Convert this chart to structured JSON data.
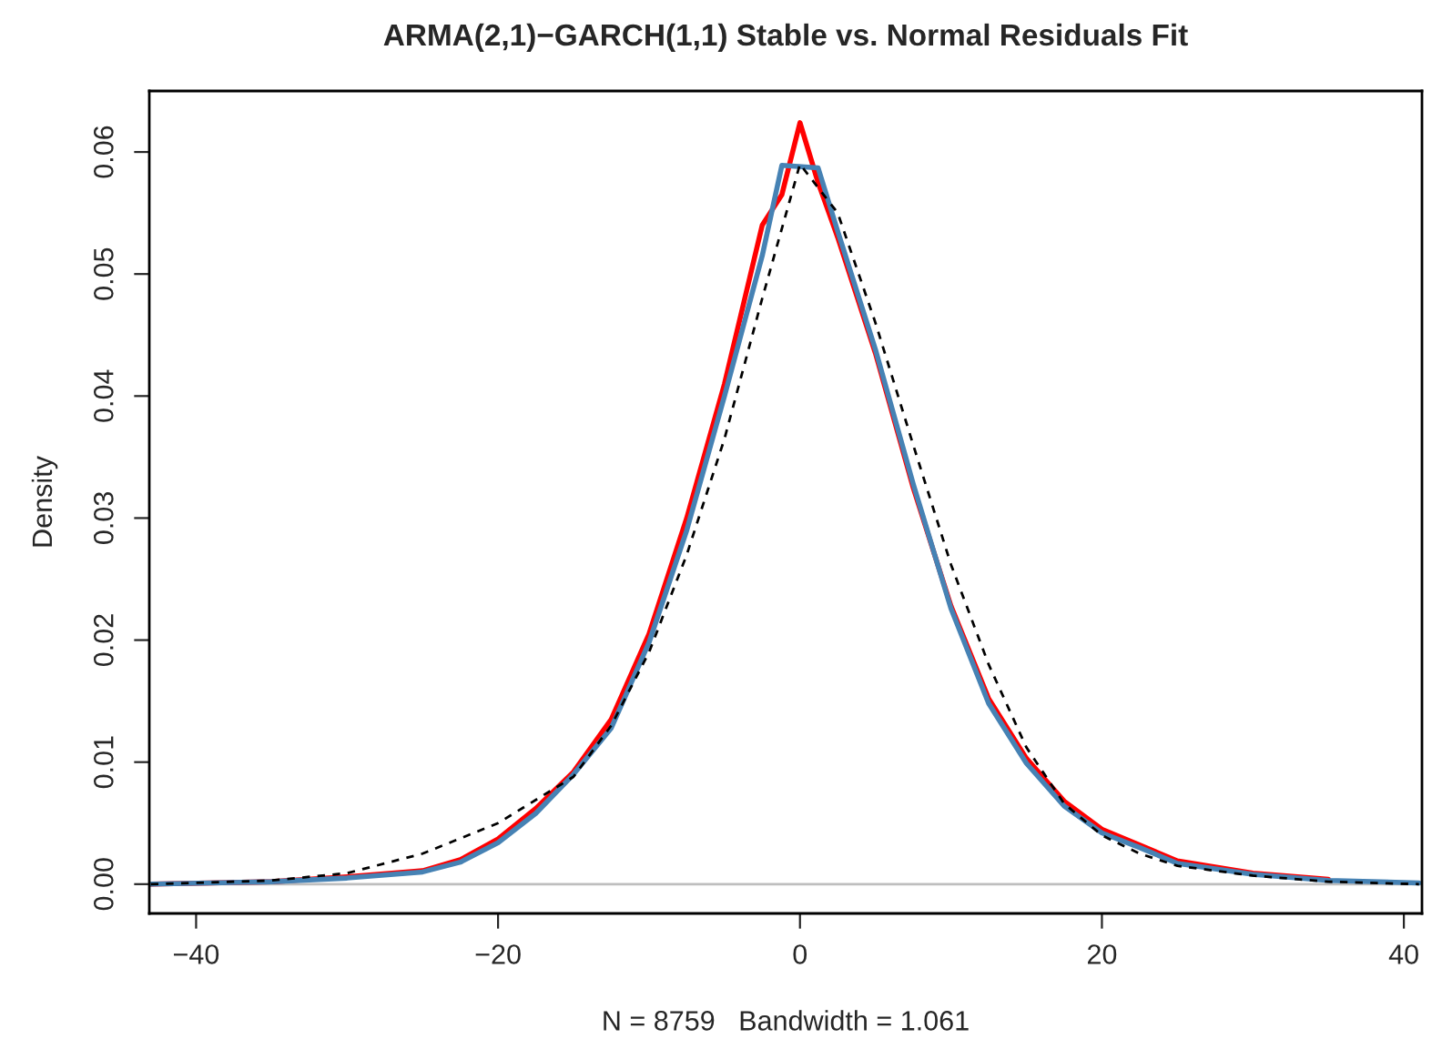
{
  "chart_data": {
    "type": "line",
    "title": "ARMA(2,1)−GARCH(1,1) Stable vs. Normal Residuals Fit",
    "xlabel": "N = 8759   Bandwidth = 1.061",
    "ylabel": "Density",
    "xlim": [
      -43.1,
      41.2
    ],
    "ylim": [
      -0.0024,
      0.065
    ],
    "xticks": [
      {
        "value": -40,
        "label": "−40"
      },
      {
        "value": -20,
        "label": "−20"
      },
      0,
      20,
      40
    ],
    "yticks": [
      {
        "value": 0,
        "label": "0.00"
      },
      {
        "value": 0.01,
        "label": "0.01"
      },
      {
        "value": 0.02,
        "label": "0.02"
      },
      {
        "value": 0.03,
        "label": "0.03"
      },
      {
        "value": 0.04,
        "label": "0.04"
      },
      {
        "value": 0.05,
        "label": "0.05"
      },
      {
        "value": 0.06,
        "label": "0.06"
      }
    ],
    "grid": false,
    "legend": false,
    "ref_lines": [
      {
        "axis": "y",
        "value": 0,
        "color": "#bebebe"
      }
    ],
    "series": [
      {
        "color": "#ff0000",
        "line_style": "solid",
        "x": [
          -43,
          -35,
          -30,
          -25,
          -22.5,
          -20,
          -17.5,
          -15,
          -12.5,
          -10,
          -7.5,
          -5,
          -2.5,
          -1.2,
          0,
          1.2,
          2.5,
          5,
          7.5,
          10,
          12.5,
          15,
          17.5,
          20,
          22.5,
          25,
          30,
          35
        ],
        "values": [
          0.0,
          0.0002,
          0.0006,
          0.0011,
          0.002,
          0.0037,
          0.0062,
          0.0092,
          0.0135,
          0.0205,
          0.03,
          0.041,
          0.054,
          0.0565,
          0.0624,
          0.0575,
          0.053,
          0.0435,
          0.0325,
          0.0228,
          0.0152,
          0.0103,
          0.0068,
          0.0045,
          0.0032,
          0.0019,
          0.0009,
          0.0004
        ]
      },
      {
        "color": "#4682b4",
        "line_style": "solid",
        "x": [
          -43,
          -35,
          -30,
          -25,
          -22.5,
          -20,
          -17.5,
          -15,
          -12.5,
          -10,
          -7.5,
          -5,
          -2.5,
          -1.2,
          1.2,
          2.5,
          5,
          7.5,
          10,
          12.5,
          15,
          17.5,
          20,
          22.5,
          25,
          30,
          35,
          41
        ],
        "values": [
          0.0,
          0.0002,
          0.0005,
          0.001,
          0.0018,
          0.0034,
          0.0058,
          0.009,
          0.0128,
          0.0198,
          0.029,
          0.04,
          0.0515,
          0.0589,
          0.0587,
          0.0535,
          0.0438,
          0.0328,
          0.0226,
          0.0148,
          0.0099,
          0.0064,
          0.0042,
          0.003,
          0.0017,
          0.0008,
          0.0003,
          0.0001
        ]
      },
      {
        "color": "#000000",
        "line_style": "dashed",
        "x": [
          -43,
          -35,
          -30,
          -25,
          -20,
          -15,
          -12.5,
          -10,
          -7.5,
          -5,
          -2.5,
          0,
          2.5,
          5,
          7.5,
          10,
          12.5,
          15,
          17.5,
          20,
          22.5,
          25,
          30,
          35,
          41
        ],
        "values": [
          0.0,
          0.0003,
          0.0009,
          0.0025,
          0.005,
          0.0088,
          0.013,
          0.019,
          0.027,
          0.0365,
          0.048,
          0.059,
          0.055,
          0.046,
          0.036,
          0.0262,
          0.018,
          0.0112,
          0.0066,
          0.004,
          0.0025,
          0.0015,
          0.0007,
          0.0002,
          0.0
        ]
      }
    ]
  }
}
